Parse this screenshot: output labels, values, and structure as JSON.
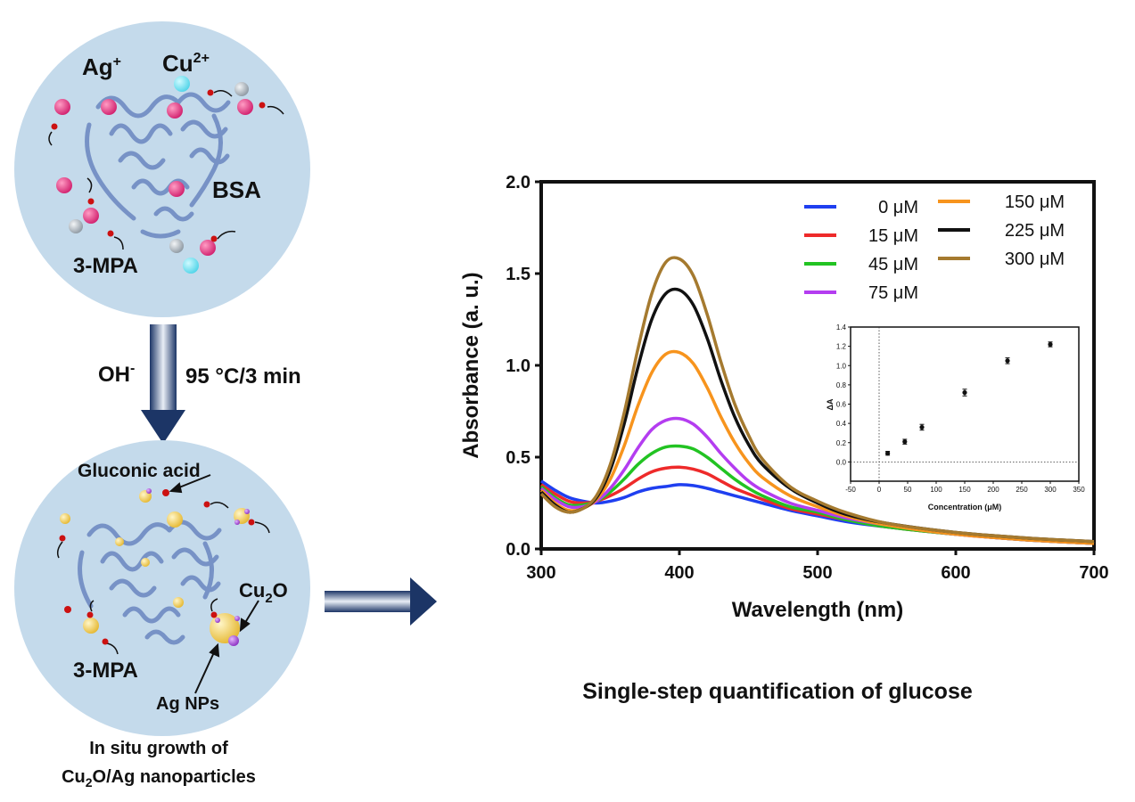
{
  "left_panel": {
    "top_circle": {
      "ion_ag": "Ag",
      "ion_ag_sup": "+",
      "ion_cu": "Cu",
      "ion_cu_sup": "2+",
      "protein": "BSA",
      "ligand": "3-MPA"
    },
    "reaction": {
      "reagent": "OH",
      "reagent_sup": "-",
      "condition": "95 °C/3 min"
    },
    "bottom_circle": {
      "gluconic": "Gluconic acid",
      "cu2o_a": "Cu",
      "cu2o_sub": "2",
      "cu2o_b": "O",
      "ligand": "3-MPA",
      "ag_nps": "Ag NPs"
    },
    "caption_line1": "In situ growth of",
    "caption_line2_a": "Cu",
    "caption_line2_sub": "2",
    "caption_line2_b": "O/Ag nanoparticles"
  },
  "caption_right": "Single-step quantification of glucose",
  "colors": {
    "circle_fill": "#c4daeb",
    "protein": "#6f8bc2",
    "ag_ion": "#d11f6d",
    "cu_ion": "#4fd4e8",
    "grey_ion": "#8d98a2",
    "ligand_head": "#cc1111",
    "nanoparticle": "#f2cf55",
    "cu2o": "#9a3ec9",
    "arrow_dark": "#1c3566",
    "arrow_light": "#e9eef6"
  },
  "chart_data": [
    {
      "type": "line",
      "xlabel": "Wavelength (nm)",
      "ylabel": "Absorbance (a. u.)",
      "xlim": [
        300,
        700
      ],
      "ylim": [
        0,
        2.0
      ],
      "xticks": [
        300,
        400,
        500,
        600,
        700
      ],
      "yticks": [
        0.0,
        0.5,
        1.0,
        1.5,
        2.0
      ],
      "ytick_labels": [
        "0.0",
        "0.5",
        "1.0",
        "1.5",
        "2.0"
      ],
      "legend_placement": "top-right",
      "x": [
        300,
        310,
        320,
        330,
        340,
        350,
        360,
        370,
        380,
        390,
        400,
        410,
        420,
        430,
        440,
        450,
        460,
        480,
        500,
        520,
        550,
        600,
        650,
        700
      ],
      "series": [
        {
          "name": "0 μM",
          "color": "#1f3ff0",
          "values": [
            0.37,
            0.32,
            0.28,
            0.26,
            0.25,
            0.26,
            0.28,
            0.31,
            0.33,
            0.34,
            0.35,
            0.345,
            0.33,
            0.31,
            0.29,
            0.27,
            0.25,
            0.21,
            0.18,
            0.15,
            0.12,
            0.08,
            0.05,
            0.03
          ]
        },
        {
          "name": "15 μM",
          "color": "#ee2a2a",
          "values": [
            0.35,
            0.3,
            0.26,
            0.25,
            0.26,
            0.29,
            0.33,
            0.38,
            0.42,
            0.44,
            0.445,
            0.435,
            0.41,
            0.37,
            0.33,
            0.3,
            0.27,
            0.22,
            0.19,
            0.16,
            0.12,
            0.08,
            0.05,
            0.03
          ]
        },
        {
          "name": "45 μM",
          "color": "#22c322",
          "values": [
            0.34,
            0.28,
            0.24,
            0.24,
            0.26,
            0.31,
            0.38,
            0.46,
            0.52,
            0.555,
            0.56,
            0.545,
            0.5,
            0.44,
            0.38,
            0.33,
            0.29,
            0.23,
            0.2,
            0.16,
            0.12,
            0.08,
            0.05,
            0.03
          ]
        },
        {
          "name": "75 μM",
          "color": "#b43df0",
          "values": [
            0.33,
            0.27,
            0.23,
            0.23,
            0.26,
            0.33,
            0.43,
            0.55,
            0.65,
            0.7,
            0.71,
            0.68,
            0.61,
            0.52,
            0.44,
            0.37,
            0.32,
            0.25,
            0.21,
            0.17,
            0.13,
            0.08,
            0.05,
            0.03
          ]
        },
        {
          "name": "150 μM",
          "color": "#f7941d",
          "values": [
            0.32,
            0.25,
            0.21,
            0.22,
            0.27,
            0.38,
            0.56,
            0.78,
            0.96,
            1.06,
            1.07,
            1.01,
            0.88,
            0.72,
            0.58,
            0.47,
            0.39,
            0.29,
            0.23,
            0.18,
            0.13,
            0.08,
            0.05,
            0.03
          ]
        },
        {
          "name": "225 μM",
          "color": "#111111",
          "values": [
            0.31,
            0.24,
            0.2,
            0.22,
            0.28,
            0.43,
            0.68,
            0.99,
            1.25,
            1.39,
            1.41,
            1.33,
            1.15,
            0.92,
            0.72,
            0.57,
            0.46,
            0.33,
            0.25,
            0.19,
            0.14,
            0.09,
            0.06,
            0.04
          ]
        },
        {
          "name": "300 μM",
          "color": "#a57a2f",
          "values": [
            0.3,
            0.23,
            0.2,
            0.22,
            0.29,
            0.46,
            0.74,
            1.09,
            1.39,
            1.56,
            1.58,
            1.49,
            1.28,
            1.02,
            0.79,
            0.62,
            0.49,
            0.34,
            0.26,
            0.2,
            0.14,
            0.09,
            0.06,
            0.04
          ]
        }
      ]
    },
    {
      "type": "scatter",
      "xlabel": "Concentration (μM)",
      "ylabel": "ΔA",
      "xlim": [
        -50,
        350
      ],
      "ylim": [
        -0.2,
        1.4
      ],
      "xticks": [
        -50,
        0,
        50,
        100,
        150,
        200,
        250,
        300,
        350
      ],
      "yticks": [
        0.0,
        0.2,
        0.4,
        0.6,
        0.8,
        1.0,
        1.2,
        1.4
      ],
      "ytick_labels": [
        "0.0",
        "0.2",
        "0.4",
        "0.6",
        "0.8",
        "1.0",
        "1.2",
        "1.4"
      ],
      "x": [
        15,
        45,
        75,
        150,
        225,
        300
      ],
      "y": [
        0.09,
        0.21,
        0.36,
        0.72,
        1.05,
        1.22
      ],
      "error": [
        0.02,
        0.025,
        0.03,
        0.035,
        0.03,
        0.025
      ]
    }
  ]
}
